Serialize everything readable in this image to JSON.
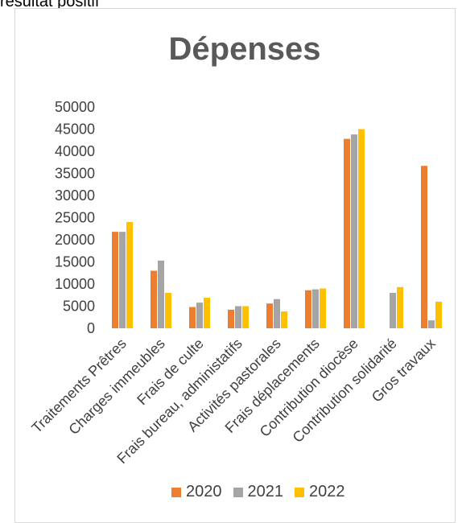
{
  "page": {
    "header_text": "résultat positif"
  },
  "chart_data": {
    "type": "bar",
    "title": "Dépenses",
    "xlabel": "",
    "ylabel": "",
    "ylim": [
      0,
      50000
    ],
    "yticks": [
      0,
      5000,
      10000,
      15000,
      20000,
      25000,
      30000,
      35000,
      40000,
      45000,
      50000
    ],
    "grid": false,
    "legend_position": "bottom",
    "categories": [
      "Traitements Prêtres",
      "Charges immeubles",
      "Frais de culte",
      "Frais bureau, administatifs",
      "Activités pastorales",
      "Frais déplacements",
      "Contribution diocèse",
      "Contribution solidarité",
      "Gros travaux"
    ],
    "series": [
      {
        "name": "2020",
        "color": "#ED7D31",
        "values": [
          21800,
          13000,
          4800,
          4200,
          5600,
          8600,
          42800,
          0,
          36700
        ]
      },
      {
        "name": "2021",
        "color": "#A5A5A5",
        "values": [
          21800,
          15300,
          5800,
          5000,
          6600,
          8800,
          43800,
          8000,
          1800
        ]
      },
      {
        "name": "2022",
        "color": "#FFC000",
        "values": [
          24000,
          8000,
          6900,
          5000,
          3800,
          9000,
          45000,
          9300,
          6000
        ]
      }
    ]
  }
}
